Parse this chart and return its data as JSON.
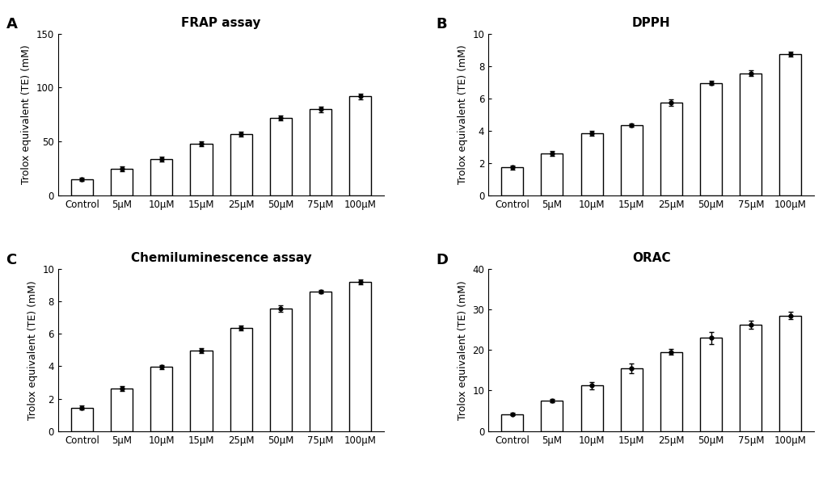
{
  "categories": [
    "Control",
    "5μM",
    "10μM",
    "15μM",
    "25μM",
    "50μM",
    "75μM",
    "100μM"
  ],
  "panels": [
    {
      "label": "A",
      "title": "FRAP assay",
      "ylabel": "Trolox equivalent (TE) (mM)",
      "ylim": [
        0,
        150
      ],
      "yticks": [
        0,
        50,
        100,
        150
      ],
      "values": [
        15,
        25,
        34,
        48,
        57,
        72,
        80,
        92
      ],
      "errors": [
        1.5,
        2.5,
        2.5,
        2.0,
        2.5,
        2.5,
        2.5,
        2.5
      ]
    },
    {
      "label": "B",
      "title": "DPPH",
      "ylabel": "Trolox equivalent (TE) (mM)",
      "ylim": [
        0,
        10
      ],
      "yticks": [
        0,
        2,
        4,
        6,
        8,
        10
      ],
      "values": [
        1.75,
        2.6,
        3.85,
        4.35,
        5.75,
        6.95,
        7.55,
        8.75
      ],
      "errors": [
        0.12,
        0.15,
        0.15,
        0.12,
        0.18,
        0.12,
        0.18,
        0.15
      ]
    },
    {
      "label": "C",
      "title": "Chemiluminescence assay",
      "ylabel": "Trolox equivalent (TE) (mM)",
      "ylim": [
        0,
        10
      ],
      "yticks": [
        0,
        2,
        4,
        6,
        8,
        10
      ],
      "values": [
        1.45,
        2.6,
        3.95,
        4.95,
        6.35,
        7.55,
        8.6,
        9.2
      ],
      "errors": [
        0.12,
        0.15,
        0.12,
        0.15,
        0.15,
        0.18,
        0.12,
        0.15
      ]
    },
    {
      "label": "D",
      "title": "ORAC",
      "ylabel": "Trolox equivalent (TE) (mM)",
      "ylim": [
        0,
        40
      ],
      "yticks": [
        0,
        10,
        20,
        30,
        40
      ],
      "values": [
        4.2,
        7.6,
        11.2,
        15.5,
        19.5,
        23.0,
        26.2,
        28.5
      ],
      "errors": [
        0.35,
        0.4,
        0.9,
        1.2,
        0.7,
        1.5,
        1.0,
        0.9
      ]
    }
  ],
  "bar_color": "white",
  "bar_edgecolor": "black",
  "bar_linewidth": 1.0,
  "marker": "o",
  "marker_size": 3.5,
  "marker_color": "black",
  "error_color": "black",
  "error_capsize": 2.5,
  "error_linewidth": 1.0,
  "background_color": "white",
  "title_fontsize": 11,
  "tick_fontsize": 8.5,
  "ylabel_fontsize": 9,
  "panel_label_fontsize": 13
}
